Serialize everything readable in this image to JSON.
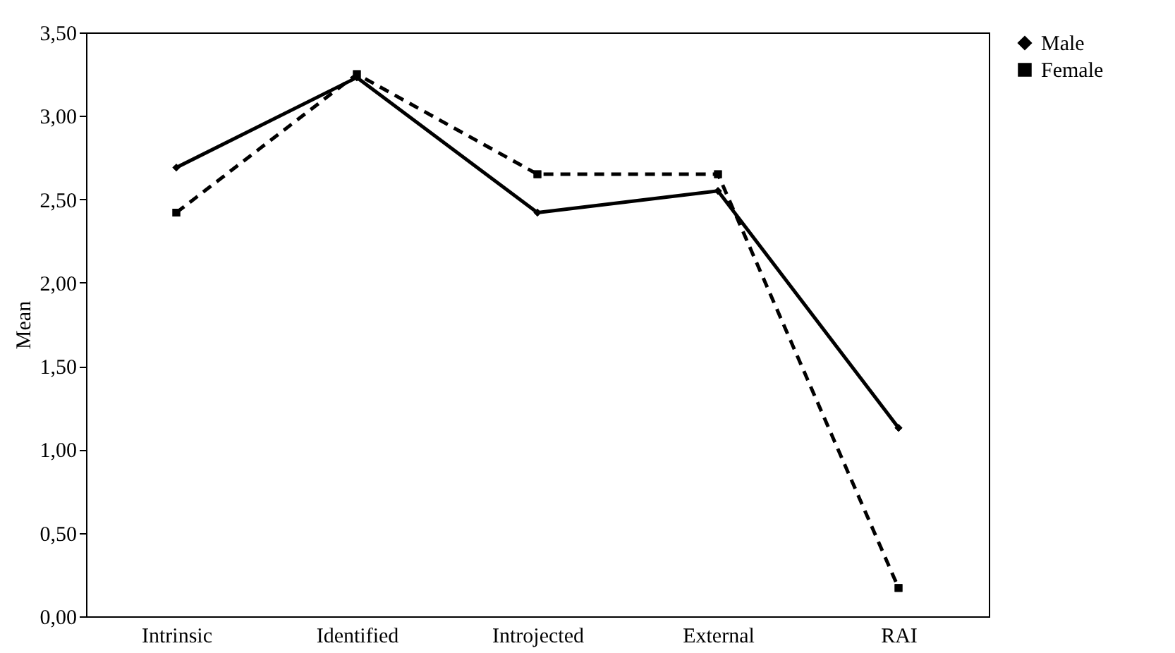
{
  "chart_data": {
    "type": "line",
    "ylabel": "Mean",
    "categories": [
      "Intrinsic",
      "Identified",
      "Introjected",
      "External",
      "RAI"
    ],
    "series": [
      {
        "name": "Male",
        "color": "#000000",
        "line_style": "solid",
        "marker": "diamond",
        "values": [
          2.69,
          3.23,
          2.42,
          2.55,
          1.13
        ]
      },
      {
        "name": "Female",
        "color": "#000000",
        "line_style": "dashed",
        "marker": "square",
        "values": [
          2.42,
          3.25,
          2.65,
          2.65,
          0.17
        ]
      }
    ],
    "ylim": [
      0,
      3.5
    ],
    "yticks": [
      {
        "value": 0,
        "label": "0,00"
      },
      {
        "value": 0.5,
        "label": "0,50"
      },
      {
        "value": 1,
        "label": "1,00"
      },
      {
        "value": 1.5,
        "label": "1,50"
      },
      {
        "value": 2,
        "label": "2,00"
      },
      {
        "value": 2.5,
        "label": "2,50"
      },
      {
        "value": 3,
        "label": "3,00"
      },
      {
        "value": 3.5,
        "label": "3,50"
      }
    ],
    "grid": false,
    "legend": "right"
  }
}
